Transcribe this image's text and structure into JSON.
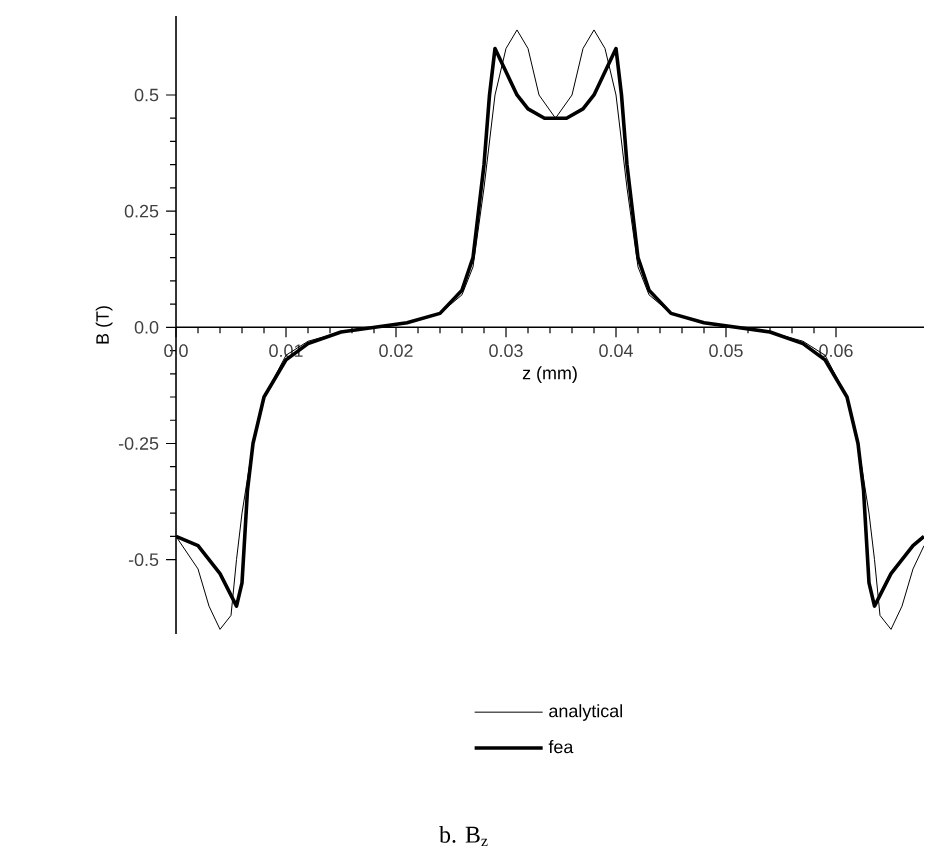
{
  "chart_data": {
    "type": "line",
    "xlabel": "z (mm)",
    "ylabel": "B (T)",
    "xlim": [
      0,
      0.068
    ],
    "ylim": [
      -0.66,
      0.67
    ],
    "xticks": [
      {
        "value": 0,
        "label": "0.0"
      },
      0.01,
      0.02,
      0.03,
      0.04,
      0.05,
      0.06
    ],
    "yticks": [
      -0.5,
      -0.25,
      {
        "value": 0,
        "label": "0.0"
      },
      0.25,
      0.5
    ],
    "grid": false,
    "legend": "bottom",
    "marker": "none",
    "line_style": "solid",
    "annotations": [
      "b. B$_{z}$"
    ],
    "series": [
      {
        "name": "analytical",
        "color": "#000000",
        "x": [
          0,
          0.002,
          0.003,
          0.004,
          0.005,
          0.0055,
          0.006,
          0.007,
          0.008,
          0.01,
          0.012,
          0.015,
          0.018,
          0.021,
          0.024,
          0.026,
          0.027,
          0.028,
          0.029,
          0.03,
          0.031,
          0.032,
          0.033,
          0.0345,
          0.036,
          0.037,
          0.038,
          0.039,
          0.04,
          0.041,
          0.042,
          0.043,
          0.045,
          0.048,
          0.051,
          0.054,
          0.057,
          0.059,
          0.061,
          0.062,
          0.063,
          0.0635,
          0.064,
          0.065,
          0.066,
          0.067,
          0.068
        ],
        "values": [
          -0.45,
          -0.52,
          -0.6,
          -0.65,
          -0.62,
          -0.5,
          -0.4,
          -0.25,
          -0.15,
          -0.06,
          -0.03,
          -0.01,
          0,
          0.01,
          0.03,
          0.07,
          0.13,
          0.3,
          0.5,
          0.6,
          0.64,
          0.6,
          0.5,
          0.45,
          0.5,
          0.6,
          0.64,
          0.6,
          0.5,
          0.3,
          0.13,
          0.07,
          0.03,
          0.01,
          0,
          -0.01,
          -0.03,
          -0.06,
          -0.15,
          -0.25,
          -0.4,
          -0.5,
          -0.62,
          -0.65,
          -0.6,
          -0.52,
          -0.47
        ]
      },
      {
        "name": "fea",
        "color": "#000000",
        "x": [
          0,
          0.002,
          0.004,
          0.0055,
          0.006,
          0.0065,
          0.007,
          0.008,
          0.01,
          0.012,
          0.015,
          0.018,
          0.021,
          0.024,
          0.026,
          0.027,
          0.028,
          0.0285,
          0.029,
          0.03,
          0.031,
          0.032,
          0.0335,
          0.0345,
          0.0355,
          0.037,
          0.038,
          0.039,
          0.04,
          0.0405,
          0.041,
          0.042,
          0.043,
          0.045,
          0.048,
          0.051,
          0.054,
          0.057,
          0.059,
          0.061,
          0.062,
          0.0625,
          0.063,
          0.0635,
          0.065,
          0.067,
          0.068
        ],
        "values": [
          -0.45,
          -0.47,
          -0.53,
          -0.6,
          -0.55,
          -0.35,
          -0.25,
          -0.15,
          -0.07,
          -0.035,
          -0.01,
          0,
          0.01,
          0.03,
          0.08,
          0.15,
          0.35,
          0.5,
          0.6,
          0.55,
          0.5,
          0.47,
          0.45,
          0.45,
          0.45,
          0.47,
          0.5,
          0.55,
          0.6,
          0.5,
          0.35,
          0.15,
          0.08,
          0.03,
          0.01,
          0,
          -0.01,
          -0.035,
          -0.07,
          -0.15,
          -0.25,
          -0.35,
          -0.55,
          -0.6,
          -0.53,
          -0.47,
          -0.45
        ]
      }
    ]
  }
}
